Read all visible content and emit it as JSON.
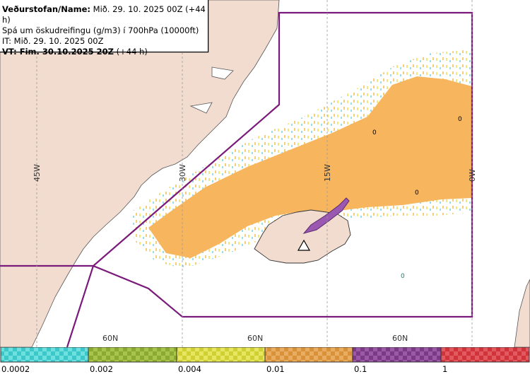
{
  "header": {
    "line1_label": "Veðurstofan/Name:",
    "line1_value": "Mið. 29. 10. 2025 00Z (+44 h)",
    "line2": "Spá um öskudreifingu (g/m3) í 700hPa (10000ft)",
    "line3": "IT: Mið. 29. 10. 2025 00Z",
    "line4_label": "VT: Fim. 30.10.2025 20Z",
    "line4_value": "(+44 h)"
  },
  "map": {
    "lon_labels": [
      "45W",
      "30W",
      "15W",
      "0W"
    ],
    "lat_labels": [
      "60N",
      "60N",
      "60N"
    ],
    "cell_labels": [
      "0",
      "0",
      "0",
      "0"
    ],
    "colors": {
      "land": "#f2dcd0",
      "sea": "#ffffff",
      "boundary": "#7a1a7a",
      "ash_main": "#f7b55e",
      "ash_purple": "#9a58b0"
    }
  },
  "legend": {
    "colors": [
      "#3cc8c8",
      "#8aaa32",
      "#d0d035",
      "#d9923a",
      "#7c3a86",
      "#d0333a"
    ],
    "labels": [
      "0.0002",
      "0.002",
      "0.004",
      "0.01",
      "0.1",
      "1"
    ]
  }
}
